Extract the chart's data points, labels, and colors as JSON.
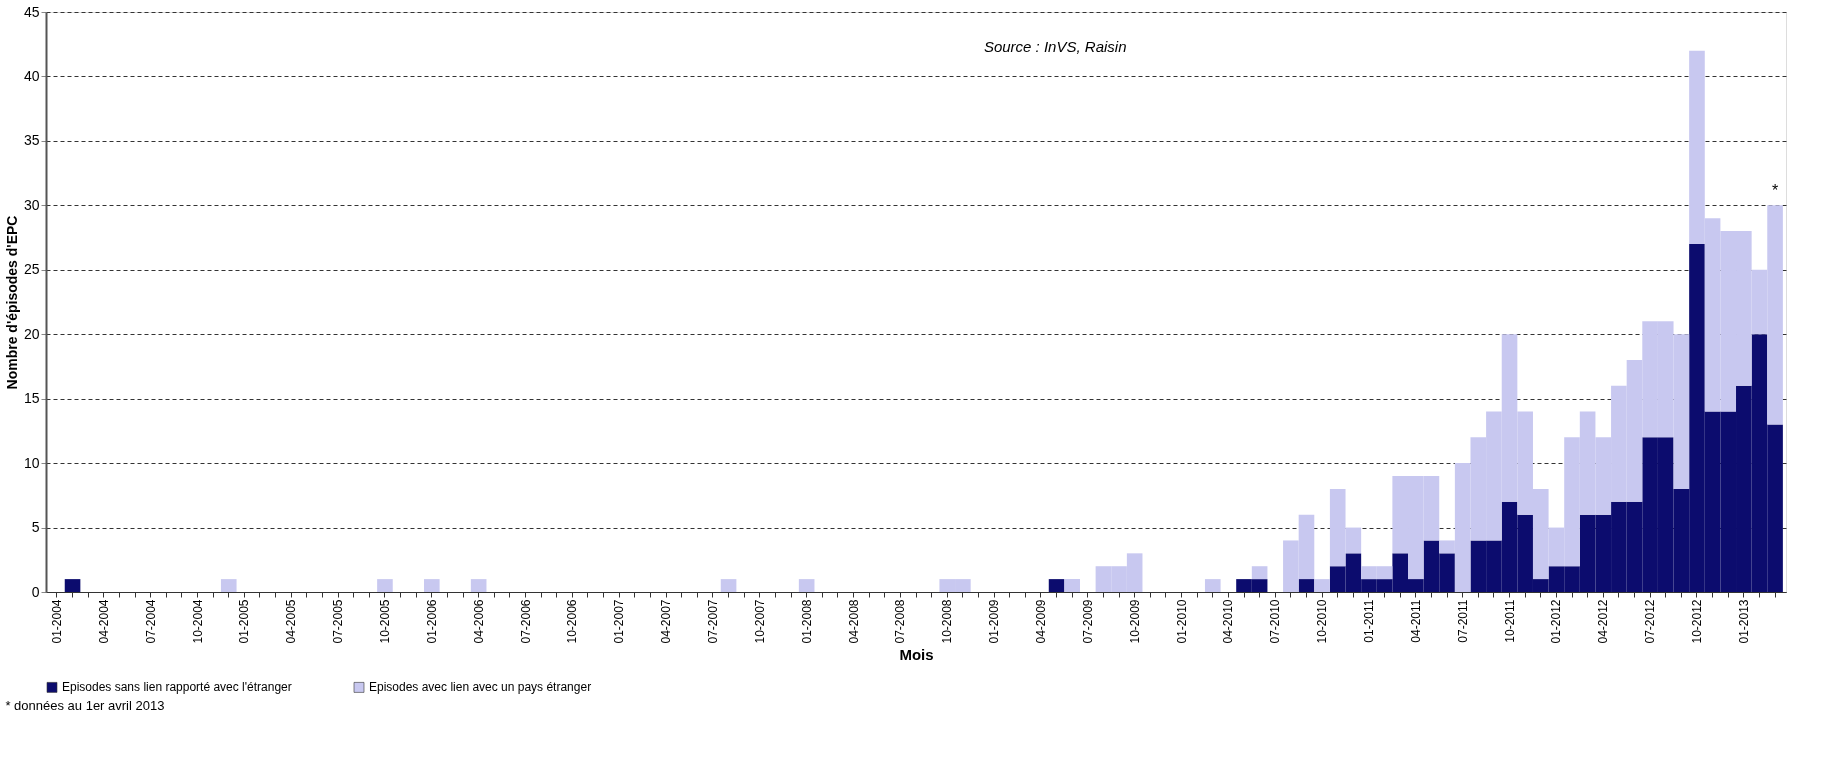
{
  "chart_data": {
    "type": "bar",
    "stacked": true,
    "xlabel": "Mois",
    "ylabel": "Nombre d'épisodes d'EPC",
    "categories": [
      "01-2004",
      null,
      null,
      "04-2004",
      null,
      null,
      "07-2004",
      null,
      null,
      "10-2004",
      null,
      null,
      "01-2005",
      null,
      null,
      "04-2005",
      null,
      null,
      "07-2005",
      null,
      null,
      "10-2005",
      null,
      null,
      "01-2006",
      null,
      null,
      "04-2006",
      null,
      null,
      "07-2006",
      null,
      null,
      "10-2006",
      null,
      null,
      "01-2007",
      null,
      null,
      "04-2007",
      null,
      null,
      "07-2007",
      null,
      null,
      "10-2007",
      null,
      null,
      "01-2008",
      null,
      null,
      "04-2008",
      null,
      null,
      "07-2008",
      null,
      null,
      "10-2008",
      null,
      null,
      "01-2009",
      null,
      null,
      "04-2009",
      null,
      null,
      "07-2009",
      null,
      null,
      "10-2009",
      null,
      null,
      "01-2010",
      null,
      null,
      "04-2010",
      null,
      null,
      "07-2010",
      null,
      null,
      "10-2010",
      null,
      null,
      "01-2011",
      null,
      null,
      "04-2011",
      null,
      null,
      "07-2011",
      null,
      null,
      "10-2011",
      null,
      null,
      "01-2012",
      null,
      null,
      "04-2012",
      null,
      null,
      "07-2012",
      null,
      null,
      "10-2012",
      null,
      null,
      "01-2013",
      null,
      null
    ],
    "series": [
      {
        "name": "Episodes sans lien rapporté avec l'étranger",
        "color": "#0c0c6e",
        "values": [
          0,
          1,
          0,
          0,
          0,
          0,
          0,
          0,
          0,
          0,
          0,
          0,
          0,
          0,
          0,
          0,
          0,
          0,
          0,
          0,
          0,
          0,
          0,
          0,
          0,
          0,
          0,
          0,
          0,
          0,
          0,
          0,
          0,
          0,
          0,
          0,
          0,
          0,
          0,
          0,
          0,
          0,
          0,
          0,
          0,
          0,
          0,
          0,
          0,
          0,
          0,
          0,
          0,
          0,
          0,
          0,
          0,
          0,
          0,
          0,
          0,
          0,
          0,
          0,
          1,
          0,
          0,
          0,
          0,
          0,
          0,
          0,
          0,
          0,
          0,
          0,
          1,
          1,
          0,
          0,
          1,
          0,
          2,
          3,
          1,
          1,
          3,
          1,
          4,
          3,
          0,
          4,
          4,
          7,
          6,
          1,
          2,
          2,
          6,
          6,
          7,
          7,
          12,
          12,
          8,
          27,
          14,
          14,
          16,
          20,
          13
        ]
      },
      {
        "name": "Episodes avec lien avec un pays étranger",
        "color": "#c8c8f0",
        "values": [
          0,
          0,
          0,
          0,
          0,
          0,
          0,
          0,
          0,
          0,
          0,
          1,
          0,
          0,
          0,
          0,
          0,
          0,
          0,
          0,
          0,
          1,
          0,
          0,
          1,
          0,
          0,
          1,
          0,
          0,
          0,
          0,
          0,
          0,
          0,
          0,
          0,
          0,
          0,
          0,
          0,
          0,
          0,
          1,
          0,
          0,
          0,
          0,
          1,
          0,
          0,
          0,
          0,
          0,
          0,
          0,
          0,
          1,
          1,
          0,
          0,
          0,
          0,
          0,
          0,
          1,
          0,
          2,
          2,
          3,
          0,
          0,
          0,
          0,
          1,
          0,
          0,
          1,
          0,
          4,
          5,
          1,
          6,
          2,
          1,
          1,
          6,
          8,
          5,
          1,
          10,
          8,
          10,
          13,
          8,
          7,
          3,
          10,
          8,
          6,
          9,
          11,
          9,
          9,
          12,
          15,
          15,
          14,
          12,
          5,
          17
        ]
      }
    ],
    "ylim": [
      0,
      45
    ],
    "yticks": [
      0,
      5,
      10,
      15,
      20,
      25,
      30,
      35,
      40,
      45
    ],
    "grid": "y",
    "legend": "bottom",
    "annotations": [
      "Source : InVS, Raisin",
      {
        "text": "*",
        "y": 30
      },
      "* données au 1er avril 2013"
    ]
  }
}
